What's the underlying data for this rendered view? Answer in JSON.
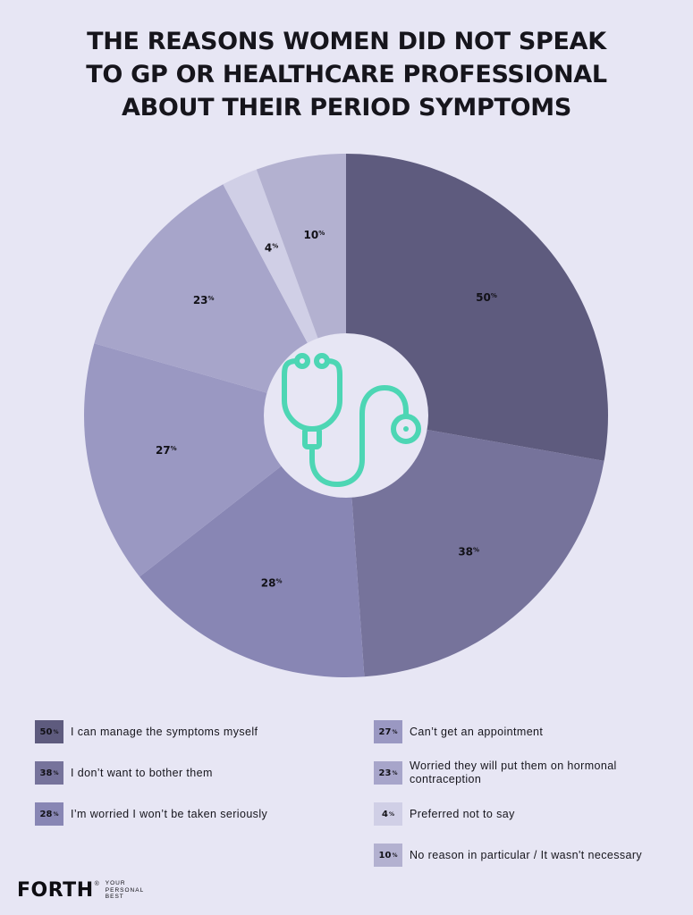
{
  "title_lines": [
    "THE REASONS WOMEN DID NOT SPEAK",
    "TO GP OR HEALTHCARE PROFESSIONAL",
    "ABOUT THEIR PERIOD SYMPTOMS"
  ],
  "center_icon": "stethoscope-icon",
  "chart_data": {
    "type": "pie",
    "title": "THE REASONS WOMEN DID NOT SPEAK TO GP OR HEALTHCARE PROFESSIONAL ABOUT THEIR PERIOD SYMPTOMS",
    "unit": "%",
    "slices": [
      {
        "label": "I can manage the symptoms myself",
        "value": 50,
        "color": "#5e5b7e"
      },
      {
        "label": "I don’t want to bother them",
        "value": 38,
        "color": "#76739b"
      },
      {
        "label": "I’m worried I won’t be taken seriously",
        "value": 28,
        "color": "#8886b4"
      },
      {
        "label": "Can’t get an appointment",
        "value": 27,
        "color": "#9a98c2"
      },
      {
        "label": "Worried they will put them on hormonal contraception",
        "value": 23,
        "color": "#a7a5ca"
      },
      {
        "label": "Preferred not to say",
        "value": 4,
        "color": "#d0cfe6"
      },
      {
        "label": "No reason in particular / It wasn't necessary",
        "value": 10,
        "color": "#b3b1d0"
      }
    ],
    "legend_placement": "bottom"
  },
  "brand": {
    "name": "FORTH",
    "reg": "®",
    "tagline": [
      "YOUR",
      "PERSONAL",
      "BEST"
    ]
  }
}
